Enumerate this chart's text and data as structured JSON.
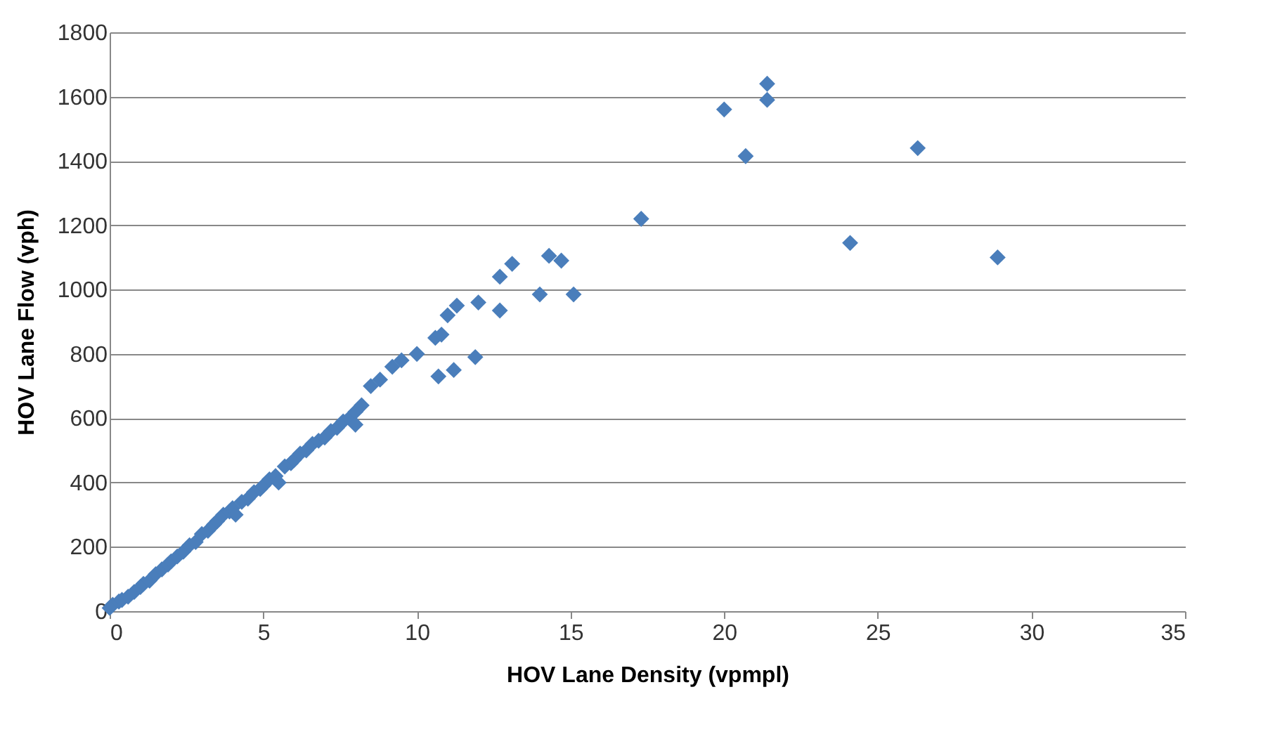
{
  "chart_data": {
    "type": "scatter",
    "xlabel": "HOV Lane Density (vpmpl)",
    "ylabel": "HOV Lane Flow (vph)",
    "xlim": [
      0,
      35
    ],
    "xticks": [
      0,
      5,
      10,
      15,
      20,
      25,
      30,
      35
    ],
    "ylim": [
      0,
      1800
    ],
    "yticks": [
      0,
      200,
      400,
      600,
      800,
      1000,
      1200,
      1400,
      1600,
      1800
    ],
    "grid": "y",
    "marker": "diamond",
    "series": [
      {
        "color": "#4a7ebb",
        "x": [
          0,
          0.1,
          0.3,
          0.4,
          0.6,
          0.8,
          1,
          1.1,
          1.3,
          1.5,
          1.7,
          1.9,
          2,
          2.2,
          2.4,
          2.6,
          2.8,
          3,
          3.2,
          3.4,
          3.5,
          3.7,
          3.9,
          4,
          4.1,
          4.3,
          4.5,
          4.7,
          4.9,
          5,
          5.2,
          5.4,
          5.5,
          5.7,
          5.9,
          6,
          6.2,
          6.4,
          6.6,
          6.8,
          7,
          7.2,
          7.4,
          7.6,
          7.8,
          8,
          8,
          8.2,
          8.5,
          8.8,
          9.2,
          9.5,
          10,
          10.6,
          10.7,
          10.8,
          11,
          11.2,
          11.3,
          11.9,
          12,
          12.7,
          12.7,
          13.1,
          14,
          14.3,
          14.7,
          15.1,
          17.3,
          20,
          20.7,
          21.4,
          21.4,
          24.1,
          26.3,
          28.9
        ],
        "values": [
          10,
          20,
          30,
          35,
          45,
          60,
          75,
          85,
          95,
          115,
          130,
          145,
          155,
          170,
          185,
          205,
          215,
          240,
          250,
          270,
          280,
          300,
          310,
          320,
          300,
          340,
          350,
          370,
          380,
          390,
          410,
          420,
          400,
          450,
          460,
          470,
          490,
          500,
          520,
          530,
          540,
          560,
          570,
          590,
          600,
          620,
          580,
          640,
          700,
          720,
          760,
          780,
          800,
          850,
          730,
          860,
          920,
          750,
          950,
          790,
          960,
          935,
          1040,
          1080,
          985,
          1105,
          1090,
          985,
          1220,
          1560,
          1415,
          1640,
          1590,
          1145,
          1440,
          1100
        ]
      }
    ]
  }
}
